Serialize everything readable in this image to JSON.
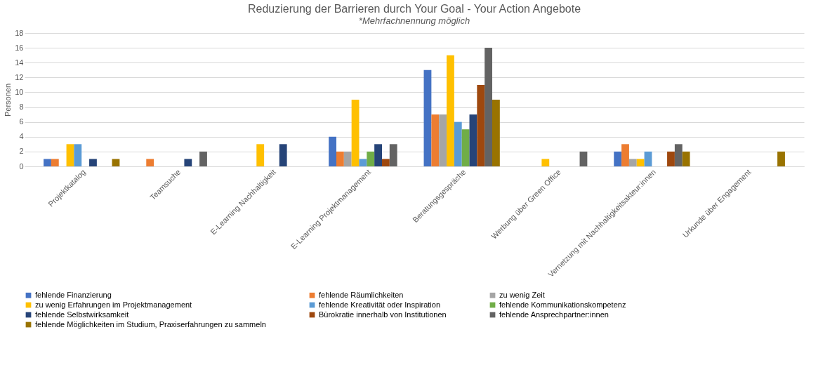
{
  "chart_data": {
    "type": "bar",
    "title": "Reduzierung der Barrieren durch Your Goal - Your Action Angebote",
    "subtitle": "*Mehrfachnennung möglich",
    "ylabel": "Personen",
    "categories": [
      "Projektkatalog",
      "Teamsuche",
      "E-Learning Nachhaltigkeit",
      "E-Learning Projektmanagement",
      "Beratungsgespräche",
      "Werbung über Green Office",
      "Vernetzung mit Nachhaltigkeitsakteur:innen",
      "Urkunde über Engagement"
    ],
    "series": [
      {
        "name": "fehlende Finanzierung",
        "color": "#4472c4",
        "values": [
          1,
          0,
          0,
          4,
          13,
          0,
          2,
          0
        ]
      },
      {
        "name": "fehlende Räumlichkeiten",
        "color": "#ed7d31",
        "values": [
          1,
          1,
          0,
          2,
          7,
          0,
          3,
          0
        ]
      },
      {
        "name": "zu wenig Zeit",
        "color": "#a5a5a5",
        "values": [
          0,
          0,
          0,
          2,
          7,
          0,
          1,
          0
        ]
      },
      {
        "name": "zu wenig Erfahrungen im Projektmanagement",
        "color": "#ffc000",
        "values": [
          3,
          0,
          3,
          9,
          15,
          1,
          1,
          0
        ]
      },
      {
        "name": "fehlende Kreativität oder Inspiration",
        "color": "#5b9bd5",
        "values": [
          3,
          0,
          0,
          1,
          6,
          0,
          2,
          0
        ]
      },
      {
        "name": "fehlende Kommunikationskompetenz",
        "color": "#70ad47",
        "values": [
          0,
          0,
          0,
          2,
          5,
          0,
          0,
          0
        ]
      },
      {
        "name": "fehlende Selbstwirksamkeit",
        "color": "#264478",
        "values": [
          1,
          1,
          3,
          3,
          7,
          0,
          0,
          0
        ]
      },
      {
        "name": "Bürokratie innerhalb von Institutionen",
        "color": "#9e480e",
        "values": [
          0,
          0,
          0,
          1,
          11,
          0,
          2,
          0
        ]
      },
      {
        "name": "fehlende Ansprechpartner:innen",
        "color": "#636363",
        "values": [
          0,
          2,
          0,
          3,
          16,
          2,
          3,
          0
        ]
      },
      {
        "name": "fehlende Möglichkeiten im Studium, Praxiserfahrungen zu sammeln",
        "color": "#997300",
        "values": [
          1,
          0,
          0,
          0,
          9,
          0,
          2,
          2
        ]
      }
    ],
    "ylim": [
      0,
      18
    ],
    "yticks": [
      0,
      2,
      4,
      6,
      8,
      10,
      12,
      14,
      16,
      18
    ],
    "grid": "y",
    "legend": "bottom"
  }
}
